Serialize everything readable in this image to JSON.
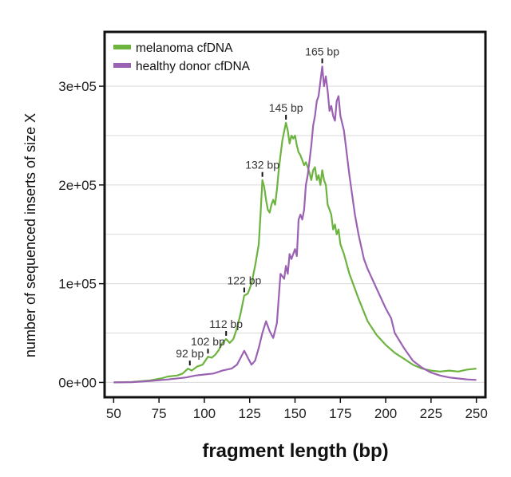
{
  "chart_data": {
    "type": "line",
    "title": "",
    "xlabel": "fragment length (bp)",
    "ylabel": "number of sequenced inserts of size X",
    "xlim": [
      45,
      255
    ],
    "ylim": [
      -15000,
      355000
    ],
    "x_ticks": [
      50,
      75,
      100,
      125,
      150,
      175,
      200,
      225,
      250
    ],
    "y_ticks": [
      {
        "value": 0,
        "label": "0e+00"
      },
      {
        "value": 100000,
        "label": "1e+05"
      },
      {
        "value": 200000,
        "label": "2e+05"
      },
      {
        "value": 300000,
        "label": "3e+05"
      }
    ],
    "gridlines": [
      0,
      50000,
      100000,
      150000,
      200000,
      250000,
      300000
    ],
    "legend_position": "top-left",
    "series": [
      {
        "name": "melanoma cfDNA",
        "color": "#6db33f",
        "points": [
          [
            50,
            0
          ],
          [
            60,
            500
          ],
          [
            70,
            2000
          ],
          [
            76,
            4000
          ],
          [
            80,
            6000
          ],
          [
            85,
            7000
          ],
          [
            88,
            9000
          ],
          [
            91,
            14000
          ],
          [
            93,
            12000
          ],
          [
            96,
            16000
          ],
          [
            99,
            18000
          ],
          [
            102,
            26000
          ],
          [
            104,
            25000
          ],
          [
            106,
            28000
          ],
          [
            108,
            33000
          ],
          [
            110,
            40000
          ],
          [
            112,
            44000
          ],
          [
            114,
            40000
          ],
          [
            116,
            44000
          ],
          [
            118,
            55000
          ],
          [
            120,
            70000
          ],
          [
            122,
            88000
          ],
          [
            124,
            90000
          ],
          [
            126,
            100000
          ],
          [
            128,
            118000
          ],
          [
            130,
            140000
          ],
          [
            131,
            170000
          ],
          [
            132,
            205000
          ],
          [
            133,
            198000
          ],
          [
            134,
            185000
          ],
          [
            135,
            175000
          ],
          [
            136,
            172000
          ],
          [
            137,
            180000
          ],
          [
            138,
            185000
          ],
          [
            139,
            180000
          ],
          [
            140,
            195000
          ],
          [
            141,
            215000
          ],
          [
            142,
            230000
          ],
          [
            143,
            245000
          ],
          [
            145,
            263000
          ],
          [
            146,
            255000
          ],
          [
            147,
            242000
          ],
          [
            148,
            250000
          ],
          [
            149,
            247000
          ],
          [
            150,
            250000
          ],
          [
            151,
            240000
          ],
          [
            152,
            233000
          ],
          [
            153,
            230000
          ],
          [
            154,
            225000
          ],
          [
            155,
            220000
          ],
          [
            156,
            223000
          ],
          [
            157,
            218000
          ],
          [
            158,
            212000
          ],
          [
            159,
            205000
          ],
          [
            160,
            215000
          ],
          [
            161,
            218000
          ],
          [
            162,
            205000
          ],
          [
            163,
            210000
          ],
          [
            164,
            200000
          ],
          [
            165,
            215000
          ],
          [
            166,
            205000
          ],
          [
            167,
            200000
          ],
          [
            168,
            180000
          ],
          [
            169,
            175000
          ],
          [
            170,
            170000
          ],
          [
            171,
            155000
          ],
          [
            172,
            160000
          ],
          [
            173,
            150000
          ],
          [
            174,
            155000
          ],
          [
            175,
            140000
          ],
          [
            177,
            130000
          ],
          [
            180,
            110000
          ],
          [
            185,
            85000
          ],
          [
            190,
            62000
          ],
          [
            195,
            48000
          ],
          [
            200,
            38000
          ],
          [
            205,
            30000
          ],
          [
            210,
            24000
          ],
          [
            215,
            18000
          ],
          [
            220,
            14000
          ],
          [
            225,
            12000
          ],
          [
            230,
            11000
          ],
          [
            235,
            12000
          ],
          [
            240,
            11000
          ],
          [
            245,
            13000
          ],
          [
            250,
            14000
          ]
        ]
      },
      {
        "name": "healthy donor cfDNA",
        "color": "#9b62b3",
        "points": [
          [
            50,
            0
          ],
          [
            60,
            300
          ],
          [
            70,
            1500
          ],
          [
            80,
            3000
          ],
          [
            90,
            5000
          ],
          [
            95,
            7000
          ],
          [
            100,
            8000
          ],
          [
            105,
            9000
          ],
          [
            110,
            12000
          ],
          [
            115,
            14000
          ],
          [
            118,
            18000
          ],
          [
            120,
            25000
          ],
          [
            122,
            32000
          ],
          [
            124,
            25000
          ],
          [
            126,
            18000
          ],
          [
            128,
            22000
          ],
          [
            130,
            35000
          ],
          [
            132,
            50000
          ],
          [
            134,
            62000
          ],
          [
            136,
            52000
          ],
          [
            138,
            45000
          ],
          [
            140,
            60000
          ],
          [
            142,
            110000
          ],
          [
            144,
            105000
          ],
          [
            145,
            118000
          ],
          [
            146,
            110000
          ],
          [
            147,
            130000
          ],
          [
            148,
            125000
          ],
          [
            150,
            135000
          ],
          [
            151,
            128000
          ],
          [
            152,
            165000
          ],
          [
            153,
            170000
          ],
          [
            154,
            165000
          ],
          [
            155,
            175000
          ],
          [
            156,
            200000
          ],
          [
            157,
            210000
          ],
          [
            158,
            225000
          ],
          [
            159,
            240000
          ],
          [
            160,
            260000
          ],
          [
            161,
            270000
          ],
          [
            162,
            285000
          ],
          [
            163,
            290000
          ],
          [
            164,
            305000
          ],
          [
            165,
            320000
          ],
          [
            166,
            300000
          ],
          [
            167,
            310000
          ],
          [
            168,
            295000
          ],
          [
            169,
            275000
          ],
          [
            170,
            280000
          ],
          [
            171,
            270000
          ],
          [
            172,
            265000
          ],
          [
            173,
            285000
          ],
          [
            174,
            290000
          ],
          [
            175,
            270000
          ],
          [
            177,
            255000
          ],
          [
            180,
            210000
          ],
          [
            183,
            170000
          ],
          [
            185,
            150000
          ],
          [
            188,
            125000
          ],
          [
            190,
            115000
          ],
          [
            195,
            95000
          ],
          [
            200,
            75000
          ],
          [
            203,
            65000
          ],
          [
            205,
            50000
          ],
          [
            210,
            35000
          ],
          [
            215,
            22000
          ],
          [
            220,
            15000
          ],
          [
            225,
            10000
          ],
          [
            230,
            7000
          ],
          [
            235,
            5000
          ],
          [
            240,
            4000
          ],
          [
            245,
            3000
          ],
          [
            250,
            2500
          ]
        ]
      }
    ],
    "annotations": [
      {
        "text": "92 bp",
        "x": 92,
        "y": 14000
      },
      {
        "text": "102 bp",
        "x": 102,
        "y": 26000
      },
      {
        "text": "112 bp",
        "x": 112,
        "y": 44000
      },
      {
        "text": "122 bp",
        "x": 122,
        "y": 88000
      },
      {
        "text": "132 bp",
        "x": 132,
        "y": 205000
      },
      {
        "text": "145 bp",
        "x": 145,
        "y": 263000
      },
      {
        "text": "165 bp",
        "x": 165,
        "y": 320000
      }
    ]
  },
  "legend": {
    "items": [
      {
        "label": "melanoma cfDNA",
        "color": "#6db33f"
      },
      {
        "label": "healthy donor cfDNA",
        "color": "#9b62b3"
      }
    ]
  }
}
